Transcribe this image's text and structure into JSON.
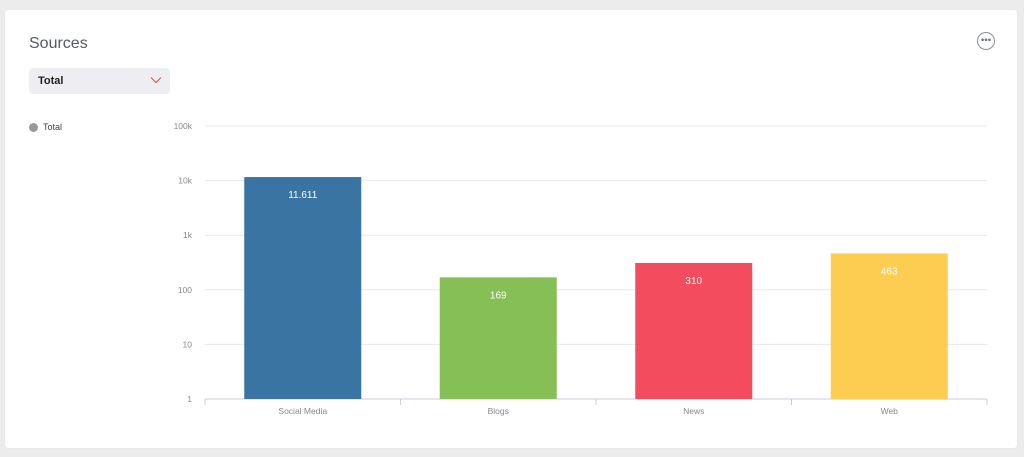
{
  "card": {
    "title": "Sources"
  },
  "dropdown": {
    "value": "Total"
  },
  "legend": [
    {
      "label": "Total",
      "color": "#999999"
    }
  ],
  "chart_data": {
    "type": "bar",
    "scale": "log",
    "categories": [
      "Social Media",
      "Blogs",
      "News",
      "Web"
    ],
    "values": [
      11611,
      169,
      310,
      463
    ],
    "data_labels": [
      "11.611",
      "169",
      "310",
      "463"
    ],
    "colors": [
      "#3a74a3",
      "#86bf55",
      "#f24c5e",
      "#fccd51"
    ],
    "y_ticks": [
      1,
      10,
      100,
      1000,
      10000,
      100000
    ],
    "y_tick_labels": [
      "1",
      "10",
      "100",
      "1k",
      "10k",
      "100k"
    ],
    "ylim": [
      1,
      100000
    ],
    "grid": true,
    "legend_position": "left",
    "title": "",
    "xlabel": "",
    "ylabel": ""
  }
}
